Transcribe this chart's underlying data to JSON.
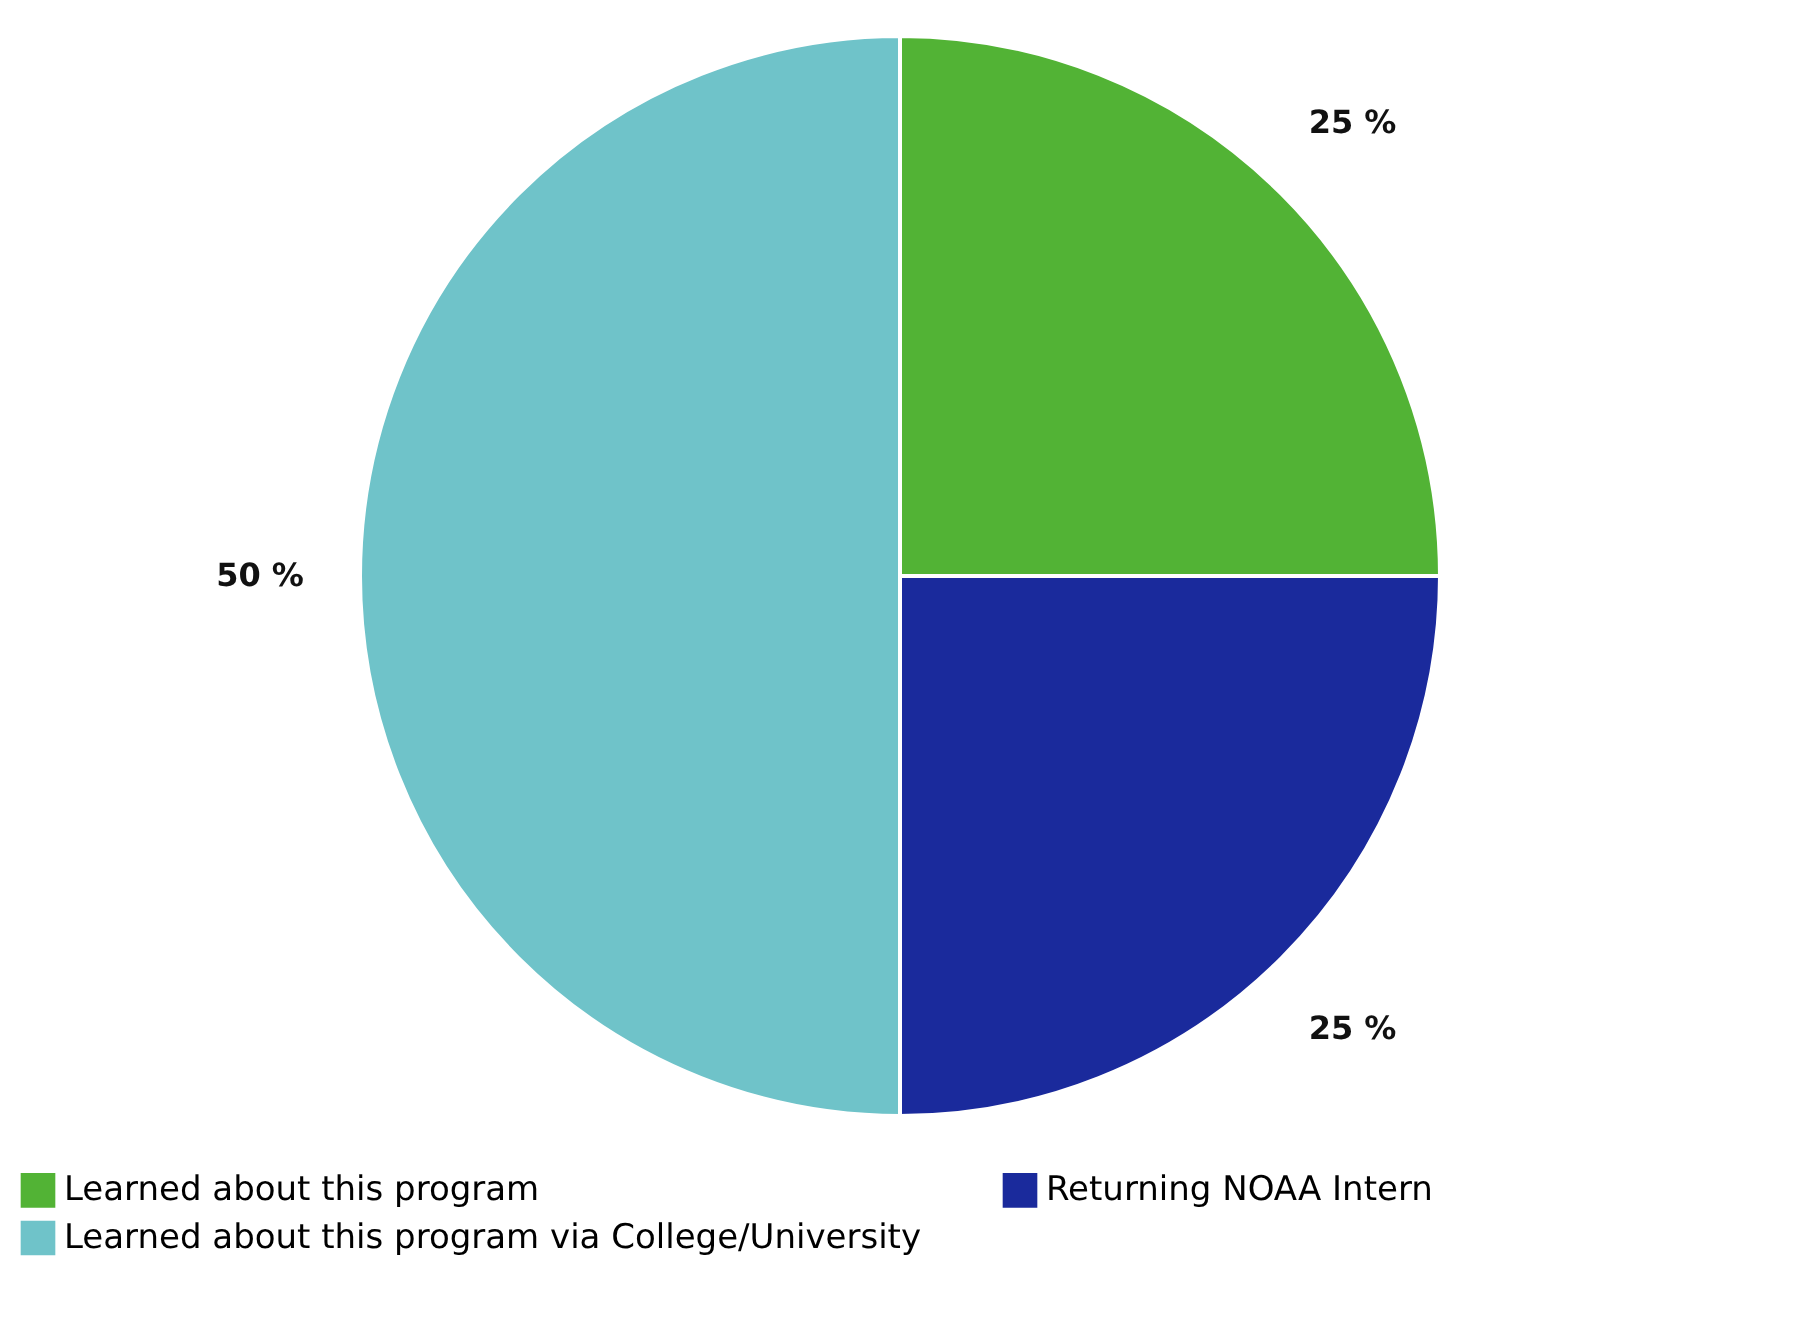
{
  "chart_data": {
    "type": "pie",
    "categories": [
      "Learned about this program",
      "Returning NOAA Intern",
      "Learned about this program via College/University"
    ],
    "values": [
      25,
      25,
      50
    ],
    "colors": [
      "#52b335",
      "#1a2a9c",
      "#6fc3c9"
    ],
    "value_labels": [
      "25 %",
      "25 %",
      "50 %"
    ],
    "legend": "bottom"
  }
}
